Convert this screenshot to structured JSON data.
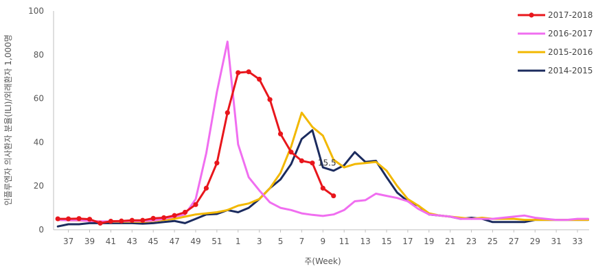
{
  "chart_data": {
    "type": "line",
    "title": "",
    "xlabel": "주(Week)",
    "ylabel": "인플루엔자 의사환자 분율(ILI)/외래환자 1,000명",
    "ylim": [
      0,
      100
    ],
    "yticks": [
      0,
      20,
      40,
      60,
      80,
      100
    ],
    "grid": false,
    "legend_position": "top-right",
    "x_tick_labels": [
      "37",
      "39",
      "41",
      "43",
      "45",
      "47",
      "49",
      "51",
      "1",
      "3",
      "5",
      "7",
      "9",
      "11",
      "13",
      "15",
      "17",
      "19",
      "21",
      "23",
      "25",
      "27",
      "29",
      "31",
      "33"
    ],
    "weeks": [
      "36",
      "37",
      "38",
      "39",
      "40",
      "41",
      "42",
      "43",
      "44",
      "45",
      "46",
      "47",
      "48",
      "49",
      "50",
      "51",
      "52",
      "1",
      "2",
      "3",
      "4",
      "5",
      "6",
      "7",
      "8",
      "9",
      "10",
      "11",
      "12",
      "13",
      "14",
      "15",
      "16",
      "17",
      "18",
      "19",
      "20",
      "21",
      "22",
      "23",
      "24",
      "25",
      "26",
      "27",
      "28",
      "29",
      "30",
      "31",
      "32",
      "33",
      "34"
    ],
    "annotation": {
      "text": "15.5",
      "series": "2017-2018",
      "week": "8"
    },
    "series": [
      {
        "name": "2017-2018",
        "color": "#e8161c",
        "marker": "circle",
        "values": [
          5.0,
          5.0,
          5.1,
          4.8,
          3.0,
          3.9,
          4.0,
          4.3,
          4.3,
          5.2,
          5.5,
          6.5,
          8.0,
          11.5,
          19.0,
          30.5,
          53.5,
          71.8,
          72.2,
          68.8,
          59.5,
          43.8,
          35.5,
          31.5,
          30.5,
          19.0,
          15.5
        ]
      },
      {
        "name": "2016-2017",
        "color": "#f06ef0",
        "marker": "none",
        "values": [
          4.5,
          4.3,
          4.3,
          4.0,
          3.8,
          3.8,
          3.9,
          4.0,
          4.0,
          4.2,
          5.0,
          6.0,
          7.0,
          14.0,
          35.0,
          63.0,
          86.0,
          39.0,
          24.0,
          18.0,
          12.5,
          10.0,
          9.0,
          7.5,
          6.8,
          6.3,
          7.0,
          9.0,
          13.0,
          13.5,
          16.5,
          15.5,
          14.5,
          13.0,
          9.5,
          7.0,
          6.5,
          6.0,
          5.0,
          5.0,
          5.0,
          5.0,
          5.5,
          6.0,
          6.5,
          5.5,
          5.0,
          4.5,
          4.5,
          5.0,
          5.0
        ]
      },
      {
        "name": "2015-2016",
        "color": "#f2b800",
        "marker": "none",
        "values": [
          4.5,
          4.3,
          4.2,
          4.1,
          3.8,
          3.7,
          3.7,
          3.7,
          3.6,
          4.0,
          4.5,
          5.0,
          6.0,
          7.0,
          7.5,
          8.0,
          9.0,
          11.0,
          12.0,
          14.0,
          19.0,
          26.0,
          38.0,
          53.5,
          47.0,
          43.0,
          32.0,
          28.5,
          30.0,
          30.5,
          31.0,
          27.0,
          20.0,
          14.0,
          11.0,
          7.5,
          6.5,
          6.0,
          5.5,
          5.0,
          5.5,
          5.0,
          5.0,
          5.0,
          4.5,
          4.5,
          4.5,
          4.5,
          4.5,
          4.5,
          4.5
        ]
      },
      {
        "name": "2014-2015",
        "color": "#1b2b5e",
        "marker": "none",
        "values": [
          1.5,
          2.5,
          2.5,
          3.0,
          3.0,
          3.0,
          3.0,
          3.0,
          2.8,
          3.0,
          3.5,
          4.0,
          3.0,
          5.0,
          7.0,
          7.2,
          9.0,
          8.0,
          10.0,
          14.0,
          19.0,
          23.0,
          30.0,
          41.5,
          45.5,
          28.5,
          27.0,
          29.5,
          35.5,
          31.0,
          31.5,
          24.0,
          17.0,
          13.0,
          11.0,
          7.0,
          6.5,
          6.0,
          5.0,
          5.5,
          5.0,
          3.5,
          3.5,
          3.5,
          3.5,
          4.5,
          4.5,
          4.5,
          4.5,
          4.5,
          4.5
        ]
      }
    ]
  }
}
